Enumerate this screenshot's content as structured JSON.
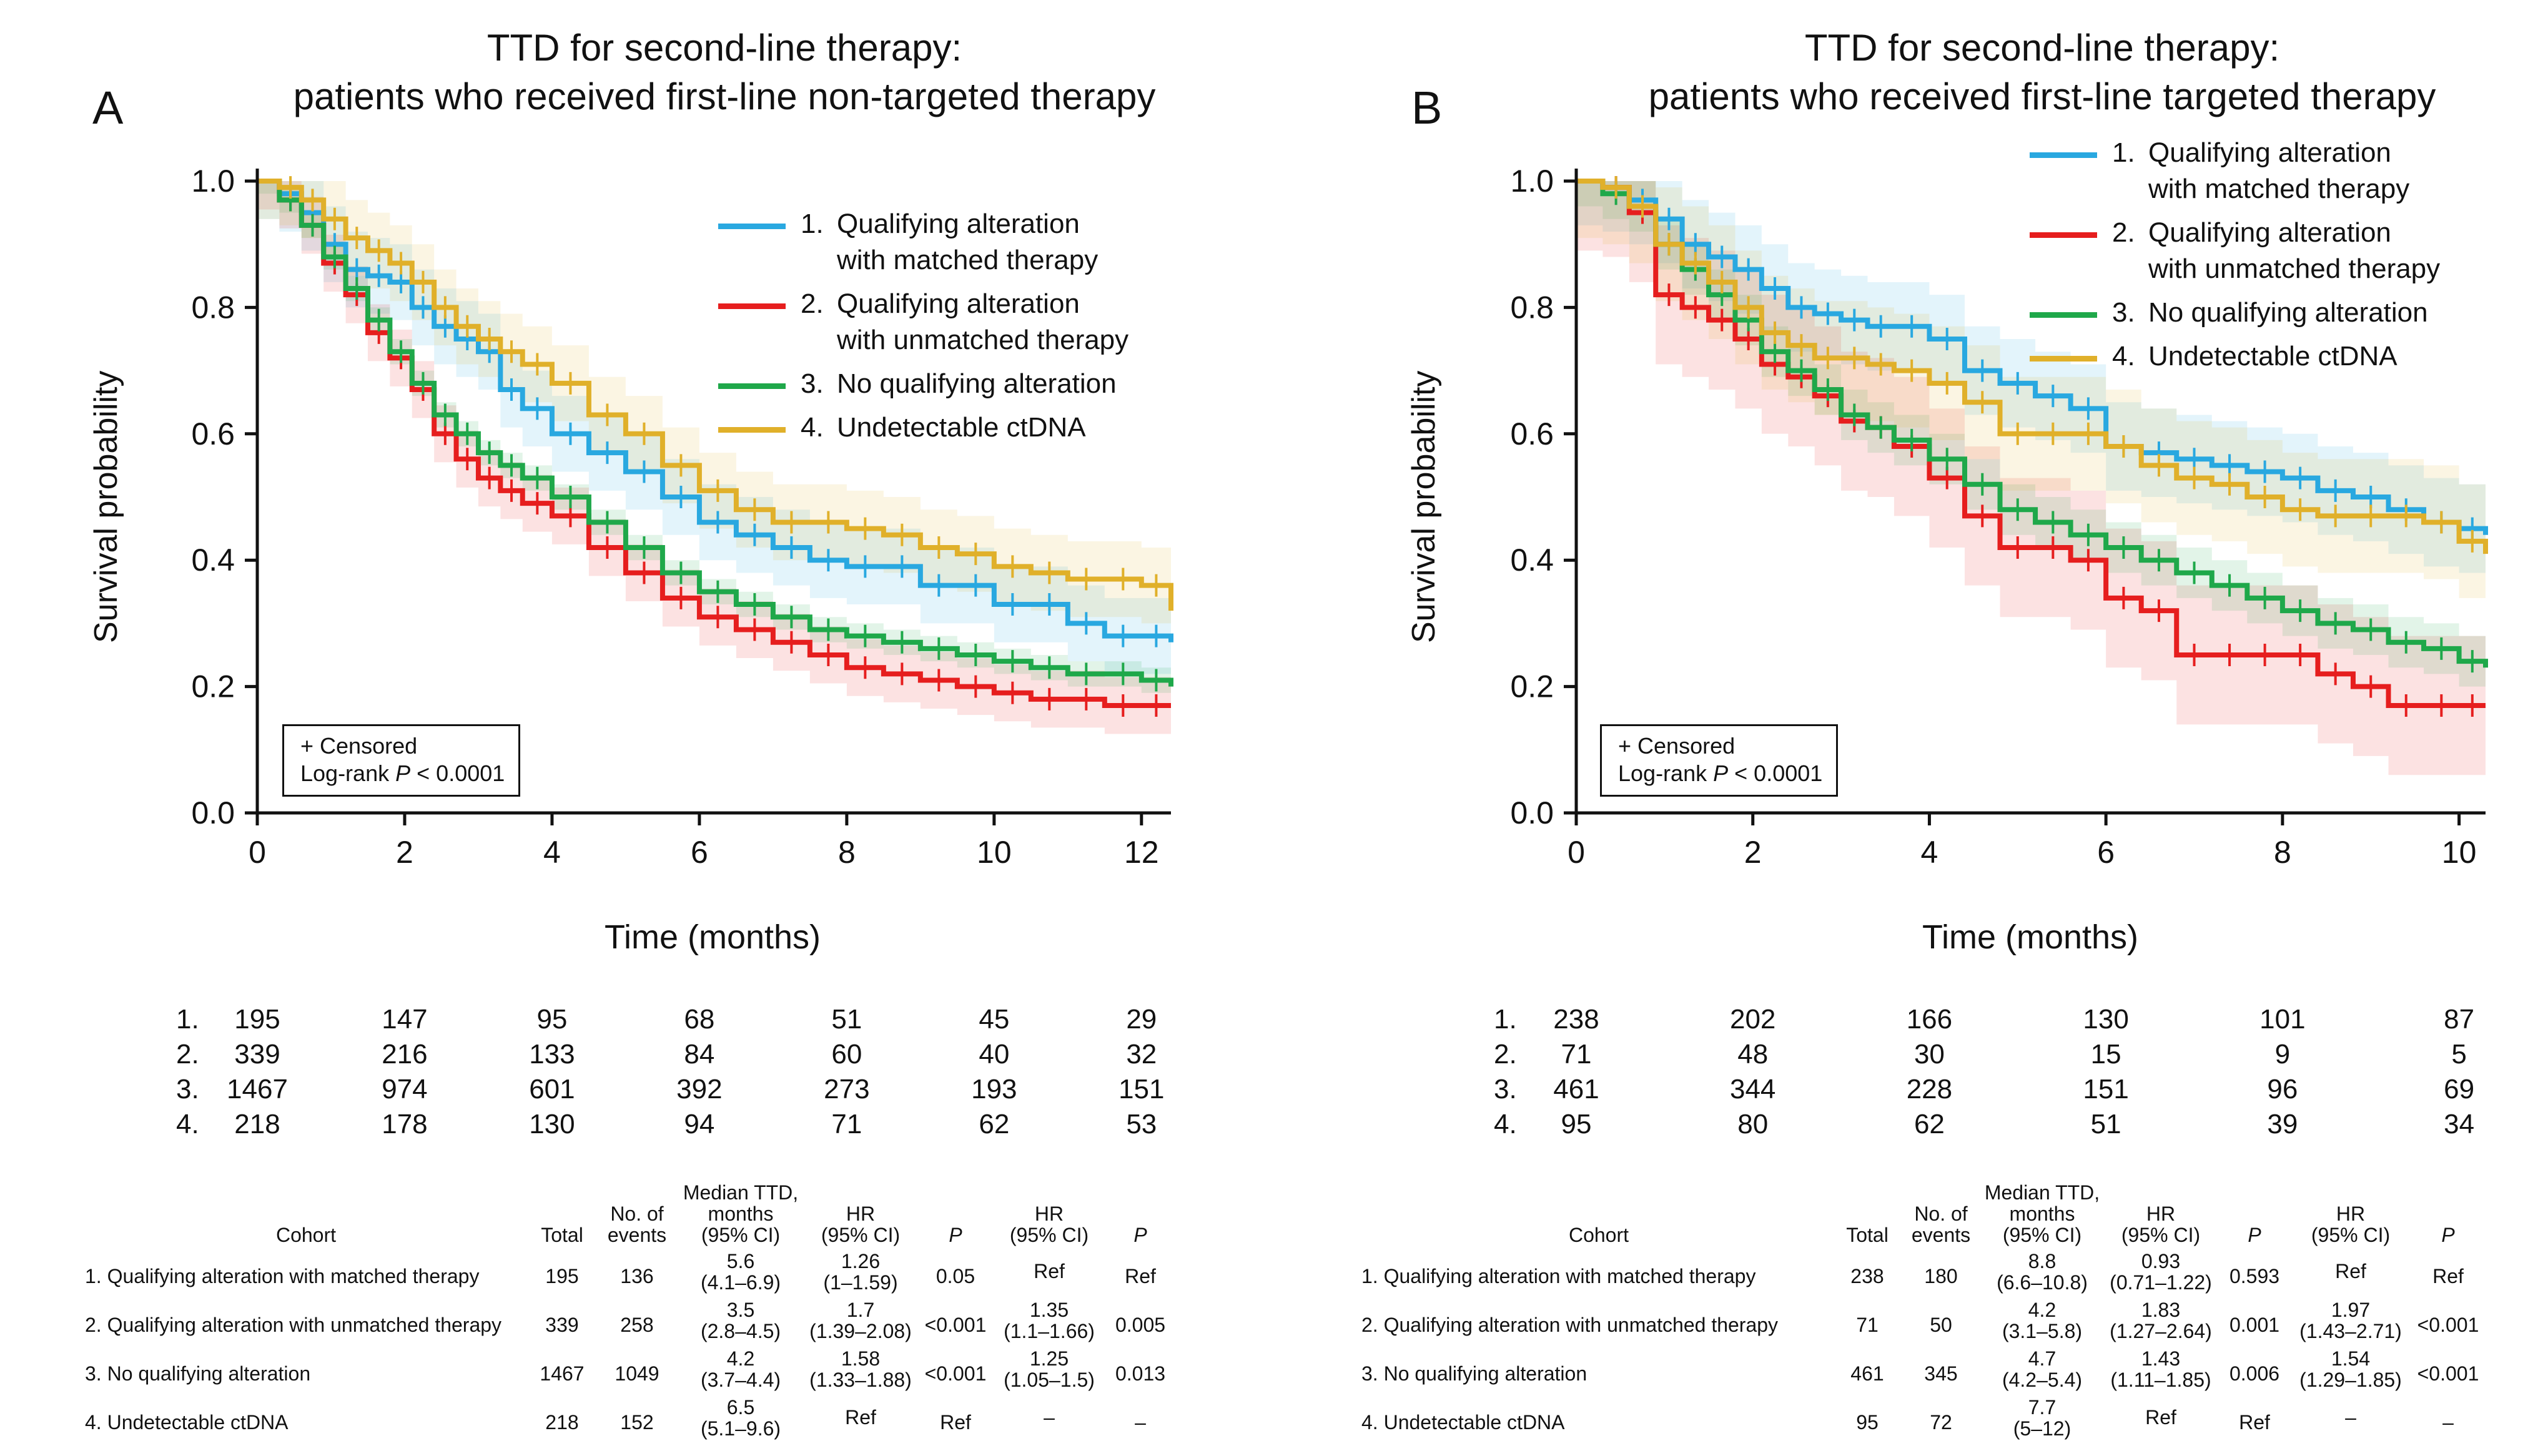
{
  "colors": {
    "1": "#29a8e0",
    "2": "#e61e1e",
    "3": "#1fa84a",
    "4": "#e0b02a"
  },
  "chart_data": [
    {
      "panel": "A",
      "type": "line",
      "subtype": "kaplan-meier",
      "title_line1": "TTD for second-line therapy:",
      "title_line2": "patients who received first-line non-targeted therapy",
      "xlabel": "Time (months)",
      "ylabel": "Survival probability",
      "xlim": [
        0,
        12.4
      ],
      "ylim": [
        0,
        1.0
      ],
      "xticks": [
        "0",
        "2",
        "4",
        "6",
        "8",
        "10",
        "12"
      ],
      "yticks": [
        "0.0",
        "0.2",
        "0.4",
        "0.6",
        "0.8",
        "1.0"
      ],
      "legend": [
        {
          "num": "1.",
          "line1": "Qualifying  alteration",
          "line2": "with matched therapy"
        },
        {
          "num": "2.",
          "line1": "Qualifying  alteration",
          "line2": "with unmatched therapy"
        },
        {
          "num": "3.",
          "line1": "No qualifying alteration",
          "line2": ""
        },
        {
          "num": "4.",
          "line1": "Undetectable ctDNA",
          "line2": ""
        }
      ],
      "annotation": {
        "line1": "+ Censored",
        "logrank": "Log-rank",
        "p": "P",
        "pval": "< 0.0001"
      },
      "series": [
        {
          "name": "1. Qualifying alteration with matched therapy",
          "x": [
            0,
            0.3,
            0.6,
            0.9,
            1.2,
            1.5,
            1.8,
            2.1,
            2.4,
            2.7,
            3.0,
            3.3,
            3.6,
            4.0,
            4.5,
            5.0,
            5.5,
            6.0,
            6.5,
            7.0,
            7.5,
            8.0,
            8.5,
            9.0,
            9.5,
            10.0,
            10.5,
            11.0,
            11.5,
            12.0,
            12.4
          ],
          "y": [
            1.0,
            0.98,
            0.95,
            0.9,
            0.86,
            0.85,
            0.84,
            0.8,
            0.77,
            0.75,
            0.73,
            0.67,
            0.64,
            0.6,
            0.57,
            0.54,
            0.5,
            0.46,
            0.44,
            0.42,
            0.4,
            0.39,
            0.39,
            0.36,
            0.36,
            0.33,
            0.33,
            0.3,
            0.28,
            0.28,
            0.27
          ],
          "ci_half": 0.06
        },
        {
          "name": "2. Qualifying alteration with unmatched therapy",
          "x": [
            0,
            0.3,
            0.6,
            0.9,
            1.2,
            1.5,
            1.8,
            2.1,
            2.4,
            2.7,
            3.0,
            3.3,
            3.6,
            4.0,
            4.5,
            5.0,
            5.5,
            6.0,
            6.5,
            7.0,
            7.5,
            8.0,
            8.5,
            9.0,
            9.5,
            10.0,
            10.5,
            11.0,
            11.5,
            12.0,
            12.4
          ],
          "y": [
            1.0,
            0.97,
            0.93,
            0.87,
            0.82,
            0.76,
            0.72,
            0.67,
            0.6,
            0.56,
            0.53,
            0.51,
            0.49,
            0.47,
            0.42,
            0.38,
            0.34,
            0.31,
            0.29,
            0.27,
            0.25,
            0.23,
            0.22,
            0.21,
            0.2,
            0.19,
            0.18,
            0.18,
            0.17,
            0.17,
            0.17
          ],
          "ci_half": 0.045
        },
        {
          "name": "3. No qualifying alteration",
          "x": [
            0,
            0.3,
            0.6,
            0.9,
            1.2,
            1.5,
            1.8,
            2.1,
            2.4,
            2.7,
            3.0,
            3.3,
            3.6,
            4.0,
            4.5,
            5.0,
            5.5,
            6.0,
            6.5,
            7.0,
            7.5,
            8.0,
            8.5,
            9.0,
            9.5,
            10.0,
            10.5,
            11.0,
            11.5,
            12.0,
            12.4
          ],
          "y": [
            1.0,
            0.97,
            0.93,
            0.88,
            0.83,
            0.78,
            0.73,
            0.68,
            0.63,
            0.6,
            0.57,
            0.55,
            0.53,
            0.5,
            0.46,
            0.42,
            0.38,
            0.35,
            0.33,
            0.31,
            0.29,
            0.28,
            0.27,
            0.26,
            0.25,
            0.24,
            0.23,
            0.22,
            0.22,
            0.21,
            0.2
          ],
          "ci_half": 0.02
        },
        {
          "name": "4. Undetectable ctDNA",
          "x": [
            0,
            0.3,
            0.6,
            0.9,
            1.2,
            1.5,
            1.8,
            2.1,
            2.4,
            2.7,
            3.0,
            3.3,
            3.6,
            4.0,
            4.5,
            5.0,
            5.5,
            6.0,
            6.5,
            7.0,
            7.5,
            8.0,
            8.5,
            9.0,
            9.5,
            10.0,
            10.5,
            11.0,
            11.5,
            12.0,
            12.4
          ],
          "y": [
            1.0,
            0.99,
            0.97,
            0.94,
            0.91,
            0.89,
            0.87,
            0.84,
            0.8,
            0.77,
            0.75,
            0.73,
            0.71,
            0.68,
            0.63,
            0.6,
            0.55,
            0.51,
            0.48,
            0.46,
            0.46,
            0.45,
            0.44,
            0.42,
            0.41,
            0.39,
            0.38,
            0.37,
            0.37,
            0.36,
            0.32
          ],
          "ci_half": 0.06
        }
      ],
      "risk_table": {
        "rows": [
          {
            "label": "1.",
            "values": [
              "195",
              "147",
              "95",
              "68",
              "51",
              "45",
              "29"
            ]
          },
          {
            "label": "2.",
            "values": [
              "339",
              "216",
              "133",
              "84",
              "60",
              "40",
              "32"
            ]
          },
          {
            "label": "3.",
            "values": [
              "1467",
              "974",
              "601",
              "392",
              "273",
              "193",
              "151"
            ]
          },
          {
            "label": "4.",
            "values": [
              "218",
              "178",
              "130",
              "94",
              "71",
              "62",
              "53"
            ]
          }
        ]
      },
      "cohort_table": {
        "headers": {
          "cohort": "Cohort",
          "total": "Total",
          "events1": "No. of",
          "events2": "events",
          "med1": "Median TTD,",
          "med2": "months",
          "med3": "(95% CI)",
          "hr1": "HR",
          "hr1ci": "(95% CI)",
          "p1": "P",
          "hr2": "HR",
          "hr2ci": "(95% CI)",
          "p2": "P"
        },
        "rows": [
          {
            "name": "1. Qualifying alteration with matched therapy",
            "total": "195",
            "events": "136",
            "med": "5.6",
            "medci": "(4.1–6.9)",
            "hr1": "1.26",
            "hr1ci": "(1–1.59)",
            "p1": "0.05",
            "hr2": "Ref",
            "hr2ci": "",
            "p2": "Ref"
          },
          {
            "name": "2. Qualifying  alteration with unmatched therapy",
            "total": "339",
            "events": "258",
            "med": "3.5",
            "medci": "(2.8–4.5)",
            "hr1": "1.7",
            "hr1ci": "(1.39–2.08)",
            "p1": "<0.001",
            "hr2": "1.35",
            "hr2ci": "(1.1–1.66)",
            "p2": "0.005"
          },
          {
            "name": "3. No qualifying alteration",
            "total": "1467",
            "events": "1049",
            "med": "4.2",
            "medci": "(3.7–4.4)",
            "hr1": "1.58",
            "hr1ci": "(1.33–1.88)",
            "p1": "<0.001",
            "hr2": "1.25",
            "hr2ci": "(1.05–1.5)",
            "p2": "0.013"
          },
          {
            "name": "4. Undetectable ctDNA",
            "total": "218",
            "events": "152",
            "med": "6.5",
            "medci": "(5.1–9.6)",
            "hr1": "Ref",
            "hr1ci": "",
            "p1": "Ref",
            "hr2": "–",
            "hr2ci": "",
            "p2": "–"
          }
        ]
      }
    },
    {
      "panel": "B",
      "type": "line",
      "subtype": "kaplan-meier",
      "title_line1": "TTD for second-line therapy:",
      "title_line2": "patients who received first-line targeted therapy",
      "xlabel": "Time (months)",
      "ylabel": "Survival probability",
      "xlim": [
        0,
        10.3
      ],
      "ylim": [
        0,
        1.0
      ],
      "xticks": [
        "0",
        "2",
        "4",
        "6",
        "8",
        "10"
      ],
      "yticks": [
        "0.0",
        "0.2",
        "0.4",
        "0.6",
        "0.8",
        "1.0"
      ],
      "legend": [
        {
          "num": "1.",
          "line1": " Qualifying alteration",
          "line2": "with matched therapy"
        },
        {
          "num": "2.",
          "line1": "Qualifying alteration",
          "line2": "with unmatched therapy"
        },
        {
          "num": "3.",
          "line1": "No qualifying alteration",
          "line2": ""
        },
        {
          "num": "4.",
          "line1": "Undetectable ctDNA",
          "line2": ""
        }
      ],
      "annotation": {
        "line1": "+ Censored",
        "logrank": "Log-rank",
        "p": "P",
        "pval": "< 0.0001"
      },
      "series": [
        {
          "name": "1. Qualifying alteration with matched therapy",
          "x": [
            0,
            0.3,
            0.6,
            0.9,
            1.2,
            1.5,
            1.8,
            2.1,
            2.4,
            2.7,
            3.0,
            3.3,
            3.6,
            4.0,
            4.4,
            4.8,
            5.2,
            5.6,
            6.0,
            6.4,
            6.8,
            7.2,
            7.6,
            8.0,
            8.4,
            8.8,
            9.2,
            9.6,
            10.0,
            10.3
          ],
          "y": [
            1.0,
            0.99,
            0.97,
            0.94,
            0.9,
            0.88,
            0.86,
            0.83,
            0.8,
            0.79,
            0.78,
            0.77,
            0.77,
            0.75,
            0.7,
            0.68,
            0.66,
            0.64,
            0.58,
            0.57,
            0.56,
            0.55,
            0.54,
            0.53,
            0.51,
            0.5,
            0.48,
            0.46,
            0.45,
            0.44
          ],
          "ci_half": 0.07
        },
        {
          "name": "2. Qualifying alteration with unmatched therapy",
          "x": [
            0,
            0.3,
            0.6,
            0.9,
            1.2,
            1.5,
            1.8,
            2.1,
            2.4,
            2.7,
            3.0,
            3.3,
            3.6,
            4.0,
            4.4,
            4.8,
            5.2,
            5.6,
            6.0,
            6.4,
            6.8,
            7.2,
            7.6,
            8.0,
            8.4,
            8.8,
            9.2,
            9.6,
            10.0,
            10.3
          ],
          "y": [
            1.0,
            0.99,
            0.95,
            0.82,
            0.8,
            0.78,
            0.75,
            0.71,
            0.69,
            0.66,
            0.62,
            0.61,
            0.58,
            0.53,
            0.47,
            0.42,
            0.42,
            0.4,
            0.34,
            0.32,
            0.25,
            0.25,
            0.25,
            0.25,
            0.22,
            0.2,
            0.17,
            0.17,
            0.17,
            0.17
          ],
          "ci_half": 0.11
        },
        {
          "name": "3. No qualifying alteration",
          "x": [
            0,
            0.3,
            0.6,
            0.9,
            1.2,
            1.5,
            1.8,
            2.1,
            2.4,
            2.7,
            3.0,
            3.3,
            3.6,
            4.0,
            4.4,
            4.8,
            5.2,
            5.6,
            6.0,
            6.4,
            6.8,
            7.2,
            7.6,
            8.0,
            8.4,
            8.8,
            9.2,
            9.6,
            10.0,
            10.3
          ],
          "y": [
            1.0,
            0.98,
            0.96,
            0.9,
            0.86,
            0.82,
            0.78,
            0.73,
            0.7,
            0.67,
            0.63,
            0.61,
            0.59,
            0.56,
            0.52,
            0.48,
            0.46,
            0.44,
            0.42,
            0.4,
            0.38,
            0.36,
            0.34,
            0.32,
            0.3,
            0.29,
            0.27,
            0.26,
            0.24,
            0.23
          ],
          "ci_half": 0.04
        },
        {
          "name": "4. Undetectable ctDNA",
          "x": [
            0,
            0.3,
            0.6,
            0.9,
            1.2,
            1.5,
            1.8,
            2.1,
            2.4,
            2.7,
            3.0,
            3.3,
            3.6,
            4.0,
            4.4,
            4.8,
            5.2,
            5.6,
            6.0,
            6.4,
            6.8,
            7.2,
            7.6,
            8.0,
            8.4,
            8.8,
            9.2,
            9.6,
            10.0,
            10.3
          ],
          "y": [
            1.0,
            0.99,
            0.96,
            0.9,
            0.87,
            0.84,
            0.8,
            0.76,
            0.74,
            0.72,
            0.72,
            0.71,
            0.7,
            0.68,
            0.65,
            0.6,
            0.6,
            0.6,
            0.58,
            0.55,
            0.53,
            0.52,
            0.5,
            0.48,
            0.47,
            0.47,
            0.47,
            0.46,
            0.43,
            0.41
          ],
          "ci_half": 0.09
        }
      ],
      "risk_table": {
        "rows": [
          {
            "label": "1.",
            "values": [
              "238",
              "202",
              "166",
              "130",
              "101",
              "87"
            ]
          },
          {
            "label": "2.",
            "values": [
              "71",
              "48",
              "30",
              "15",
              "9",
              "5"
            ]
          },
          {
            "label": "3.",
            "values": [
              "461",
              "344",
              "228",
              "151",
              "96",
              "69"
            ]
          },
          {
            "label": "4.",
            "values": [
              "95",
              "80",
              "62",
              "51",
              "39",
              "34"
            ]
          }
        ]
      },
      "cohort_table": {
        "headers": {
          "cohort": "Cohort",
          "total": "Total",
          "events1": "No. of",
          "events2": "events",
          "med1": "Median TTD,",
          "med2": "months",
          "med3": "(95% CI)",
          "hr1": "HR",
          "hr1ci": "(95% CI)",
          "p1": "P",
          "hr2": "HR",
          "hr2ci": "(95% CI)",
          "p2": "P"
        },
        "rows": [
          {
            "name": "1. Qualifying alteration with matched therapy",
            "total": "238",
            "events": "180",
            "med": "8.8",
            "medci": "(6.6–10.8)",
            "hr1": "0.93",
            "hr1ci": "(0.71–1.22)",
            "p1": "0.593",
            "hr2": "Ref",
            "hr2ci": "",
            "p2": "Ref"
          },
          {
            "name": "2. Qualifying alteration with unmatched therapy",
            "total": "71",
            "events": "50",
            "med": "4.2",
            "medci": "(3.1–5.8)",
            "hr1": "1.83",
            "hr1ci": "(1.27–2.64)",
            "p1": "0.001",
            "hr2": "1.97",
            "hr2ci": "(1.43–2.71)",
            "p2": "<0.001"
          },
          {
            "name": "3. No qualifying alteration",
            "total": "461",
            "events": "345",
            "med": "4.7",
            "medci": "(4.2–5.4)",
            "hr1": "1.43",
            "hr1ci": "(1.11–1.85)",
            "p1": "0.006",
            "hr2": "1.54",
            "hr2ci": "(1.29–1.85)",
            "p2": "<0.001"
          },
          {
            "name": "4. Undetectable ctDNA",
            "total": "95",
            "events": "72",
            "med": "7.7",
            "medci": "(5–12)",
            "hr1": "Ref",
            "hr1ci": "",
            "p1": "Ref",
            "hr2": "–",
            "hr2ci": "",
            "p2": "–"
          }
        ]
      }
    }
  ]
}
